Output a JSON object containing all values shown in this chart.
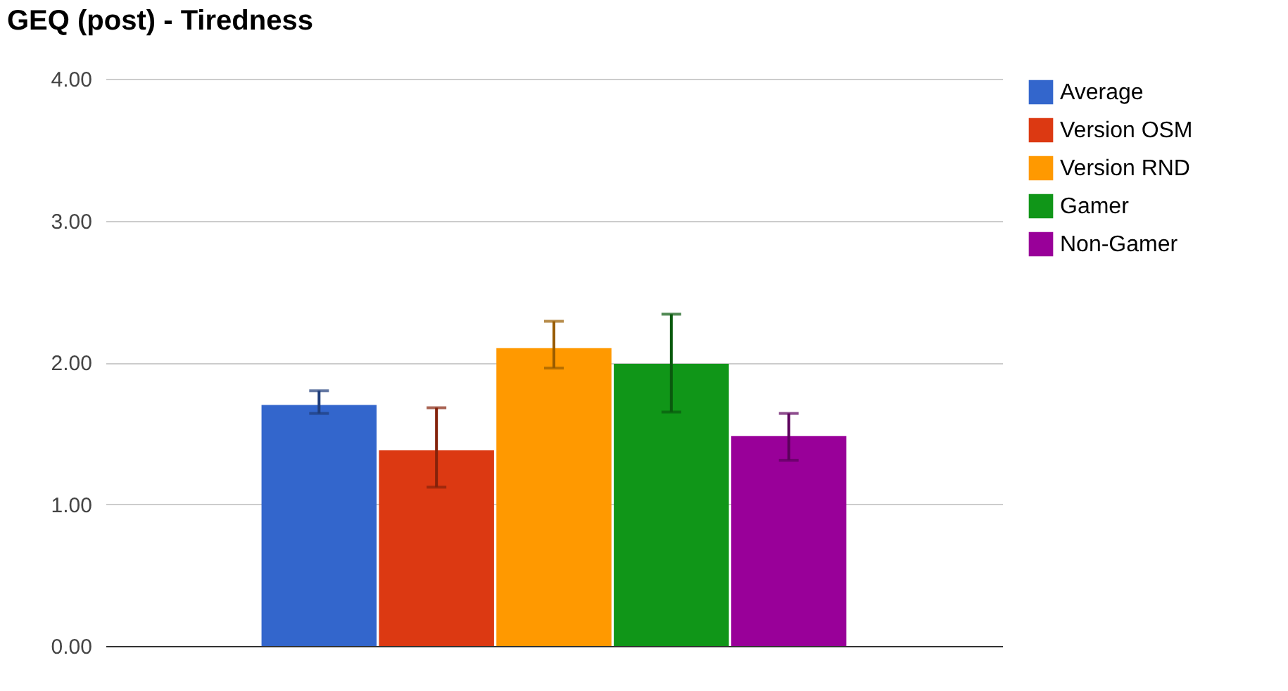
{
  "chart_data": {
    "type": "bar",
    "title": "GEQ (post) - Tiredness",
    "categories": [
      null
    ],
    "series": [
      {
        "name": "Average",
        "color": "#3366cc",
        "values": [
          1.7
        ],
        "errors": [
          [
            1.64,
            1.8
          ]
        ]
      },
      {
        "name": "Version OSM",
        "color": "#dc3912",
        "values": [
          1.38
        ],
        "errors": [
          [
            1.12,
            1.68
          ]
        ]
      },
      {
        "name": "Version RND",
        "color": "#ff9900",
        "values": [
          2.1
        ],
        "errors": [
          [
            1.96,
            2.29
          ]
        ]
      },
      {
        "name": "Gamer",
        "color": "#109618",
        "values": [
          1.99
        ],
        "errors": [
          [
            1.65,
            2.34
          ]
        ]
      },
      {
        "name": "Non-Gamer",
        "color": "#990099",
        "values": [
          1.48
        ],
        "errors": [
          [
            1.31,
            1.64
          ]
        ]
      }
    ],
    "ylim": [
      0,
      4
    ],
    "yticks": [
      {
        "value": 0,
        "label": "0.00"
      },
      {
        "value": 1,
        "label": "1.00"
      },
      {
        "value": 2,
        "label": "2.00"
      },
      {
        "value": 3,
        "label": "3.00"
      },
      {
        "value": 4,
        "label": "4.00"
      }
    ],
    "grid": "y",
    "legend": "right"
  }
}
